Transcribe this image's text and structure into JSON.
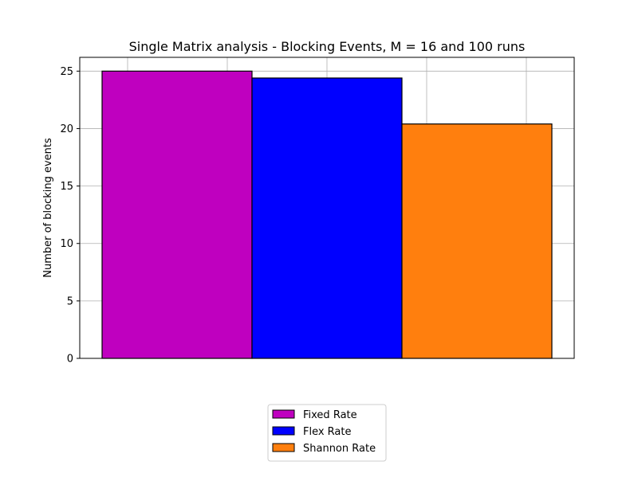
{
  "chart_data": {
    "type": "bar",
    "title": "Single Matrix analysis - Blocking Events, M = 16 and 100 runs",
    "xlabel": "",
    "ylabel": "Number of blocking events",
    "ylim": [
      0,
      26.2
    ],
    "yticks": [
      0,
      5,
      10,
      15,
      20,
      25
    ],
    "grid": true,
    "legend_position": "bottom-center",
    "series": [
      {
        "name": "Fixed Rate",
        "value": 25.0,
        "color": "#bf00bf"
      },
      {
        "name": "Flex Rate",
        "value": 24.4,
        "color": "#0000ff"
      },
      {
        "name": "Shannon Rate",
        "value": 20.4,
        "color": "#ff7f0e"
      }
    ]
  }
}
